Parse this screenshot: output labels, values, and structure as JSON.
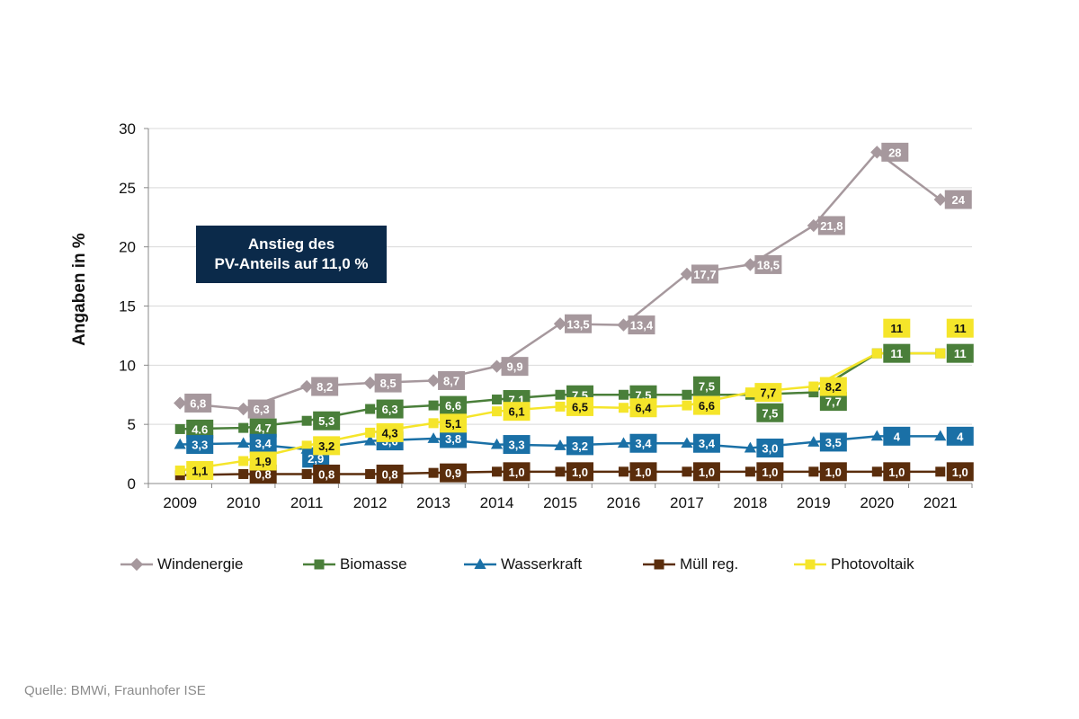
{
  "callout": {
    "line1": "Anstieg des",
    "line2": "PV-Anteils auf 11,0 %"
  },
  "source": "Quelle: BMWi, Fraunhofer ISE",
  "chart_data": {
    "type": "line",
    "ylabel": "Angaben in %",
    "ylim": [
      0,
      30
    ],
    "yticks": [
      "0",
      "5",
      "10",
      "15",
      "20",
      "25",
      "30"
    ],
    "categories": [
      "2009",
      "2010",
      "2011",
      "2012",
      "2013",
      "2014",
      "2015",
      "2016",
      "2017",
      "2018",
      "2019",
      "2020",
      "2021"
    ],
    "grid": true,
    "legend_position": "bottom",
    "series": [
      {
        "name": "Windenergie",
        "color": "#a6989d",
        "marker": "diamond",
        "values": [
          6.8,
          6.3,
          8.2,
          8.5,
          8.7,
          9.9,
          13.5,
          13.4,
          17.7,
          18.5,
          21.8,
          28,
          24
        ],
        "labels": [
          "6,8",
          "6,3",
          "8,2",
          "8,5",
          "8,7",
          "9,9",
          "13,5",
          "13,4",
          "17,7",
          "18,5",
          "21,8",
          "28",
          "24"
        ]
      },
      {
        "name": "Biomasse",
        "color": "#4a7f3a",
        "marker": "square",
        "values": [
          4.6,
          4.7,
          5.3,
          6.3,
          6.6,
          7.1,
          7.5,
          7.5,
          7.5,
          7.5,
          7.7,
          11,
          11
        ],
        "labels": [
          "4.6",
          "4,7",
          "5,3",
          "6,3",
          "6,6",
          "7,1",
          "7,5",
          "7,5",
          "7,5",
          "7,5",
          "7,7",
          "11",
          "11"
        ]
      },
      {
        "name": "Wasserkraft",
        "color": "#1a70a6",
        "marker": "triangle",
        "values": [
          3.3,
          3.4,
          2.9,
          3.6,
          3.8,
          3.3,
          3.2,
          3.4,
          3.4,
          3.0,
          3.5,
          4,
          4
        ],
        "labels": [
          "3,3",
          "3,4",
          "2,9",
          "3,6",
          "3,8",
          "3,3",
          "3,2",
          "3,4",
          "3,4",
          "3,0",
          "3,5",
          "4",
          "4"
        ]
      },
      {
        "name": "Müll reg.",
        "color": "#5a2d0c",
        "marker": "square",
        "values": [
          0.7,
          0.8,
          0.8,
          0.8,
          0.9,
          1.0,
          1.0,
          1.0,
          1.0,
          1.0,
          1.0,
          1.0,
          1.0
        ],
        "labels": [
          "",
          "0,8",
          "0,8",
          "0,8",
          "0,9",
          "1,0",
          "1,0",
          "1,0",
          "1,0",
          "1,0",
          "1,0",
          "1,0",
          "1,0"
        ]
      },
      {
        "name": "Photovoltaik",
        "color": "#f5e52a",
        "marker": "square",
        "values": [
          1.1,
          1.9,
          3.2,
          4.3,
          5.1,
          6.1,
          6.5,
          6.4,
          6.6,
          7.7,
          8.2,
          11,
          11
        ],
        "labels": [
          "1,1",
          "1,9",
          "3,2",
          "4,3",
          "5,1",
          "6,1",
          "6,5",
          "6,4",
          "6,6",
          "7,7",
          "8,2",
          "11",
          "11"
        ]
      }
    ]
  }
}
